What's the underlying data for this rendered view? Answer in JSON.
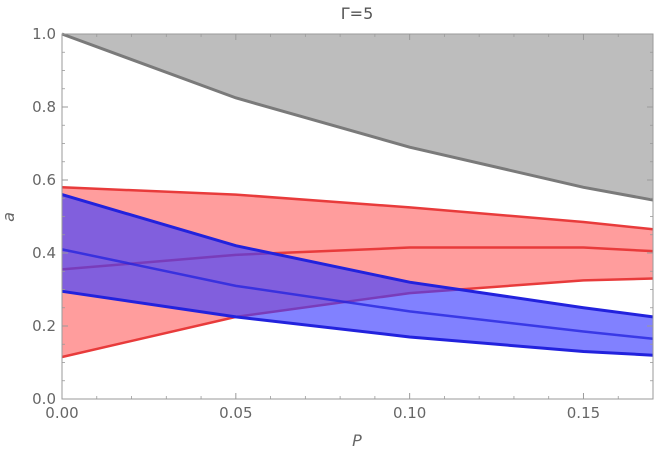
{
  "chart_data": {
    "type": "area",
    "title": "Γ=5",
    "xlabel": "P",
    "ylabel": "a",
    "xlim": [
      0,
      0.17
    ],
    "ylim": [
      0,
      1.0
    ],
    "xticks": [
      "0.00",
      "0.05",
      "0.10",
      "0.15"
    ],
    "xtick_values": [
      0,
      0.05,
      0.1,
      0.15
    ],
    "yticks": [
      "0.0",
      "0.2",
      "0.4",
      "0.6",
      "0.8",
      "1.0"
    ],
    "ytick_values": [
      0,
      0.2,
      0.4,
      0.6,
      0.8,
      1.0
    ],
    "grid": false,
    "colors": {
      "gray_fill": "#bdbdbd",
      "gray_line": "#7a7a7a",
      "red_fill": "#ff6e6e",
      "red_line": "#e83b3b",
      "blue_fill": "#3d3dff",
      "blue_line": "#2222dd",
      "axis": "#9a9a9a"
    },
    "series": [
      {
        "key": "gray_region",
        "x": [
          0,
          0.05,
          0.1,
          0.15,
          0.17
        ],
        "lower": [
          1.0,
          0.825,
          0.69,
          0.58,
          0.545
        ],
        "upper": [
          1.0,
          1.0,
          1.0,
          1.0,
          1.0
        ]
      },
      {
        "key": "red_region",
        "x": [
          0,
          0.05,
          0.1,
          0.15,
          0.17
        ],
        "upper": [
          0.58,
          0.56,
          0.525,
          0.485,
          0.465
        ],
        "middle": [
          0.355,
          0.395,
          0.415,
          0.415,
          0.405
        ],
        "lower": [
          0.115,
          0.225,
          0.29,
          0.325,
          0.33
        ]
      },
      {
        "key": "blue_region",
        "x": [
          0,
          0.05,
          0.1,
          0.15,
          0.17
        ],
        "upper": [
          0.56,
          0.42,
          0.32,
          0.25,
          0.225
        ],
        "middle": [
          0.41,
          0.31,
          0.24,
          0.185,
          0.165
        ],
        "lower": [
          0.295,
          0.225,
          0.17,
          0.13,
          0.12
        ]
      }
    ]
  }
}
